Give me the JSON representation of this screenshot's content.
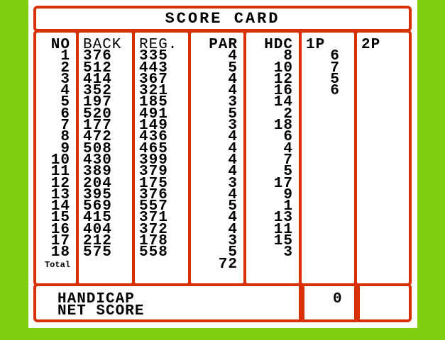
{
  "title": "SCORE CARD",
  "columns": {
    "no": {
      "header": "NO",
      "values": [
        "1",
        "2",
        "3",
        "4",
        "5",
        "6",
        "7",
        "8",
        "9",
        "10",
        "11",
        "12",
        "13",
        "14",
        "15",
        "16",
        "17",
        "18"
      ],
      "total_label": "Total"
    },
    "back": {
      "header": "BACK",
      "values": [
        "376",
        "512",
        "414",
        "352",
        "197",
        "520",
        "177",
        "472",
        "508",
        "430",
        "389",
        "204",
        "395",
        "569",
        "415",
        "404",
        "212",
        "575"
      ]
    },
    "reg": {
      "header": "REG.",
      "values": [
        "335",
        "443",
        "367",
        "321",
        "185",
        "491",
        "149",
        "436",
        "465",
        "399",
        "379",
        "175",
        "376",
        "557",
        "371",
        "372",
        "178",
        "558"
      ]
    },
    "par": {
      "header": "PAR",
      "values": [
        "4",
        "5",
        "4",
        "4",
        "3",
        "5",
        "3",
        "4",
        "4",
        "4",
        "4",
        "3",
        "4",
        "5",
        "4",
        "4",
        "3",
        "5"
      ],
      "total": "72"
    },
    "hdc": {
      "header": "HDC",
      "values": [
        "8",
        "10",
        "12",
        "16",
        "14",
        "2",
        "18",
        "6",
        "4",
        "7",
        "5",
        "17",
        "9",
        "1",
        "13",
        "11",
        "15",
        "3"
      ]
    },
    "p1": {
      "header": "1P",
      "values": [
        "6",
        "7",
        "5",
        "6"
      ]
    },
    "p2": {
      "header": "2P",
      "values": []
    }
  },
  "footer": {
    "handicap_label": "HANDICAP",
    "net_score_label": "NET SCORE",
    "p1_handicap": "0",
    "p2_handicap": ""
  },
  "colors": {
    "background": "#80d010",
    "border": "#d83000",
    "panel": "#ffffff"
  }
}
